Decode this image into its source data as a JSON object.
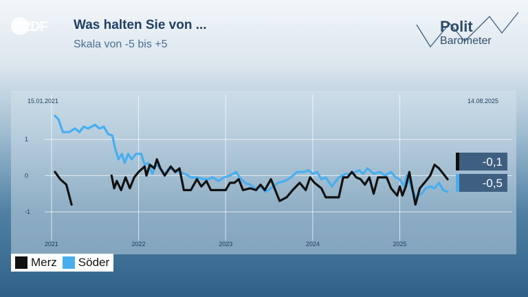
{
  "logo": {
    "text": "2DF"
  },
  "header": {
    "title": "Was halten Sie von ...",
    "subtitle": "Skala von -5 bis +5"
  },
  "brand": {
    "line1": "Polit",
    "line2": "Barometer"
  },
  "colors": {
    "merz": "#111111",
    "soeder": "#48aef0",
    "value_box": "#3e5f80"
  },
  "chart_data": {
    "type": "line",
    "start_date": "15.01.2021",
    "end_date": "14.08.2025",
    "xlim": [
      2021.04,
      2025.62
    ],
    "ylim": [
      -1.7,
      2.0
    ],
    "x_ticks": [
      2021,
      2022,
      2023,
      2024,
      2025
    ],
    "x_tick_labels": [
      "2021",
      "2022",
      "2023",
      "2024",
      "2025"
    ],
    "y_ticks": [
      1,
      0,
      -1
    ],
    "y_tick_labels": [
      "1",
      "0",
      "-1"
    ],
    "grid": true,
    "legend_position": "bottom-left",
    "series": [
      {
        "name": "Merz",
        "last_value_label": "-0,1",
        "segments": [
          [
            [
              2021.04,
              0.1
            ],
            [
              2021.1,
              -0.1
            ],
            [
              2021.17,
              -0.25
            ],
            [
              2021.23,
              -0.8
            ]
          ],
          [
            [
              2021.69,
              0.0
            ],
            [
              2021.72,
              -0.35
            ],
            [
              2021.75,
              -0.15
            ],
            [
              2021.8,
              -0.4
            ],
            [
              2021.85,
              -0.05
            ],
            [
              2021.9,
              -0.35
            ],
            [
              2021.95,
              -0.05
            ],
            [
              2022.0,
              0.1
            ],
            [
              2022.07,
              0.25
            ],
            [
              2022.09,
              0.0
            ],
            [
              2022.13,
              0.3
            ],
            [
              2022.18,
              0.2
            ],
            [
              2022.21,
              0.45
            ],
            [
              2022.25,
              0.2
            ],
            [
              2022.3,
              0.0
            ],
            [
              2022.37,
              0.25
            ],
            [
              2022.42,
              0.1
            ],
            [
              2022.47,
              0.2
            ],
            [
              2022.52,
              -0.4
            ],
            [
              2022.6,
              -0.4
            ],
            [
              2022.67,
              -0.1
            ],
            [
              2022.72,
              -0.3
            ],
            [
              2022.78,
              -0.15
            ],
            [
              2022.83,
              -0.4
            ],
            [
              2022.88,
              -0.4
            ],
            [
              2023.0,
              -0.4
            ],
            [
              2023.05,
              -0.2
            ],
            [
              2023.1,
              -0.2
            ],
            [
              2023.15,
              -0.1
            ],
            [
              2023.2,
              -0.4
            ],
            [
              2023.28,
              -0.35
            ],
            [
              2023.35,
              -0.4
            ],
            [
              2023.4,
              -0.25
            ],
            [
              2023.45,
              -0.4
            ],
            [
              2023.52,
              -0.1
            ],
            [
              2023.57,
              -0.4
            ],
            [
              2023.62,
              -0.7
            ],
            [
              2023.7,
              -0.6
            ],
            [
              2023.77,
              -0.4
            ],
            [
              2023.85,
              -0.2
            ],
            [
              2023.92,
              -0.4
            ],
            [
              2023.97,
              -0.05
            ],
            [
              2024.02,
              -0.2
            ],
            [
              2024.1,
              -0.35
            ],
            [
              2024.15,
              -0.6
            ],
            [
              2024.3,
              -0.6
            ],
            [
              2024.35,
              -0.05
            ],
            [
              2024.4,
              -0.05
            ],
            [
              2024.45,
              0.1
            ],
            [
              2024.5,
              -0.05
            ],
            [
              2024.55,
              -0.1
            ],
            [
              2024.6,
              -0.25
            ],
            [
              2024.65,
              -0.05
            ],
            [
              2024.7,
              -0.5
            ],
            [
              2024.75,
              -0.05
            ],
            [
              2024.85,
              -0.05
            ],
            [
              2024.9,
              -0.35
            ],
            [
              2024.97,
              -0.55
            ],
            [
              2025.0,
              -0.3
            ],
            [
              2025.03,
              -0.55
            ],
            [
              2025.07,
              -0.3
            ],
            [
              2025.11,
              0.1
            ],
            [
              2025.14,
              -0.3
            ],
            [
              2025.18,
              -0.8
            ],
            [
              2025.23,
              -0.35
            ],
            [
              2025.3,
              -0.15
            ],
            [
              2025.35,
              0.0
            ],
            [
              2025.4,
              0.3
            ],
            [
              2025.45,
              0.2
            ],
            [
              2025.5,
              0.05
            ],
            [
              2025.55,
              -0.1
            ]
          ]
        ]
      },
      {
        "name": "Söder",
        "last_value_label": "-0,5",
        "segments": [
          [
            [
              2021.04,
              1.65
            ],
            [
              2021.08,
              1.55
            ],
            [
              2021.13,
              1.2
            ],
            [
              2021.2,
              1.2
            ],
            [
              2021.27,
              1.3
            ],
            [
              2021.32,
              1.2
            ],
            [
              2021.37,
              1.35
            ],
            [
              2021.42,
              1.3
            ],
            [
              2021.5,
              1.4
            ],
            [
              2021.55,
              1.3
            ],
            [
              2021.6,
              1.35
            ],
            [
              2021.65,
              1.15
            ],
            [
              2021.7,
              1.1
            ],
            [
              2021.73,
              0.75
            ],
            [
              2021.77,
              0.45
            ],
            [
              2021.81,
              0.6
            ],
            [
              2021.84,
              0.35
            ],
            [
              2021.88,
              0.6
            ],
            [
              2021.92,
              0.45
            ],
            [
              2021.97,
              0.6
            ],
            [
              2022.03,
              0.6
            ],
            [
              2022.07,
              0.3
            ],
            [
              2022.11,
              0.35
            ],
            [
              2022.16,
              0.05
            ],
            [
              2022.2,
              0.3
            ],
            [
              2022.25,
              0.2
            ],
            [
              2022.3,
              0.05
            ],
            [
              2022.35,
              0.2
            ],
            [
              2022.42,
              0.15
            ],
            [
              2022.47,
              0.1
            ],
            [
              2022.53,
              0.05
            ],
            [
              2022.6,
              -0.05
            ],
            [
              2022.67,
              -0.05
            ],
            [
              2022.75,
              -0.1
            ],
            [
              2022.8,
              -0.1
            ],
            [
              2022.85,
              -0.05
            ],
            [
              2022.92,
              -0.15
            ],
            [
              2022.98,
              -0.05
            ],
            [
              2023.05,
              0.0
            ],
            [
              2023.12,
              0.1
            ],
            [
              2023.16,
              -0.05
            ],
            [
              2023.22,
              -0.2
            ],
            [
              2023.28,
              -0.25
            ],
            [
              2023.34,
              -0.35
            ],
            [
              2023.4,
              -0.3
            ],
            [
              2023.46,
              -0.45
            ],
            [
              2023.52,
              -0.35
            ],
            [
              2023.6,
              -0.2
            ],
            [
              2023.68,
              -0.15
            ],
            [
              2023.75,
              -0.05
            ],
            [
              2023.82,
              0.1
            ],
            [
              2023.9,
              0.1
            ],
            [
              2023.95,
              0.15
            ],
            [
              2024.0,
              0.05
            ],
            [
              2024.05,
              0.1
            ],
            [
              2024.1,
              -0.1
            ],
            [
              2024.15,
              -0.05
            ],
            [
              2024.22,
              -0.3
            ],
            [
              2024.3,
              -0.05
            ],
            [
              2024.38,
              0.05
            ],
            [
              2024.45,
              0.05
            ],
            [
              2024.53,
              0.15
            ],
            [
              2024.58,
              0.05
            ],
            [
              2024.63,
              0.2
            ],
            [
              2024.7,
              0.05
            ],
            [
              2024.77,
              0.1
            ],
            [
              2024.83,
              0.0
            ],
            [
              2024.9,
              0.1
            ],
            [
              2024.95,
              -0.05
            ],
            [
              2025.0,
              -0.1
            ],
            [
              2025.05,
              -0.3
            ],
            [
              2025.08,
              0.0
            ],
            [
              2025.13,
              -0.3
            ],
            [
              2025.18,
              -0.6
            ],
            [
              2025.25,
              -0.5
            ],
            [
              2025.3,
              -0.35
            ],
            [
              2025.35,
              -0.3
            ],
            [
              2025.4,
              -0.35
            ],
            [
              2025.45,
              -0.2
            ],
            [
              2025.5,
              -0.4
            ],
            [
              2025.55,
              -0.45
            ]
          ]
        ]
      }
    ]
  }
}
